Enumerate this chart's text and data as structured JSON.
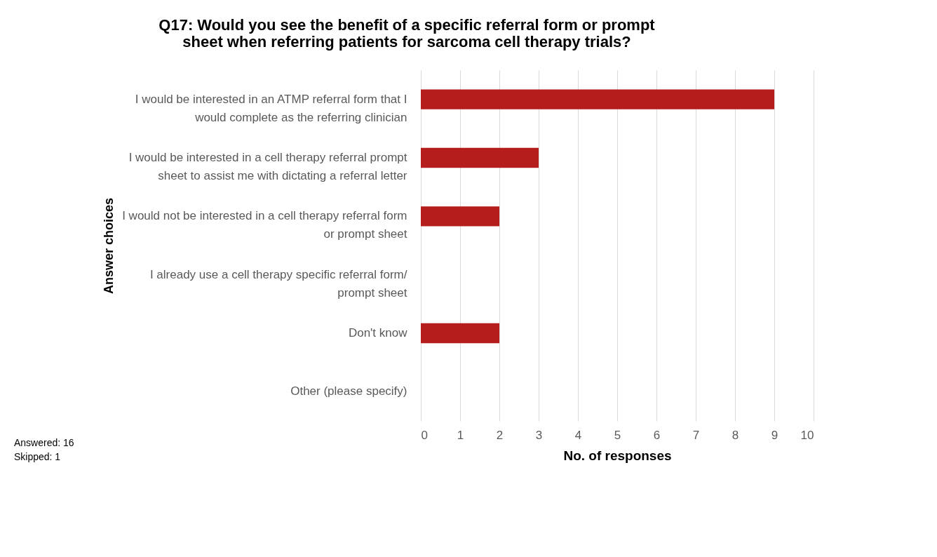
{
  "chart_data": {
    "type": "bar",
    "orientation": "horizontal",
    "title": [
      "Q17: Would you see the benefit of a specific referral form or prompt",
      "sheet when referring patients for sarcoma cell therapy trials?"
    ],
    "categories": [
      "I would be interested in an ATMP referral form that I\nwould complete as the referring clinician",
      "I would be interested in a cell therapy referral prompt\nsheet to assist me with dictating a referral letter",
      "I would not be interested in a cell therapy referral form\nor prompt sheet",
      "I already use a cell therapy specific referral form/\nprompt sheet",
      "Don't know",
      "Other (please specify)"
    ],
    "values": [
      9,
      3,
      2,
      0,
      2,
      0
    ],
    "color": "#b51c1c",
    "xlim": [
      0,
      10
    ],
    "xticks": [
      0,
      1,
      2,
      3,
      4,
      5,
      6,
      7,
      8,
      9,
      10
    ],
    "xlabel": "No. of responses",
    "ylabel": "Answer choices",
    "grid": "x",
    "annotations": [
      "Answered: 16",
      "Skipped: 1"
    ]
  }
}
